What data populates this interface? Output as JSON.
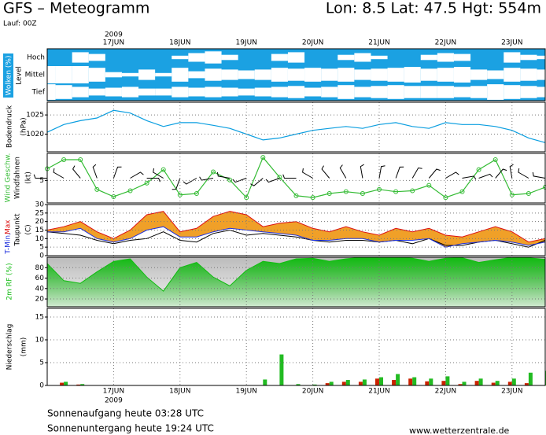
{
  "header": {
    "title": "GFS – Meteogramm",
    "location": "Lon: 8.5  Lat: 47.5  Hgt: 554m",
    "run": "Lauf: 00Z"
  },
  "footer": {
    "sunrise": "Sonnenaufgang heute 03:28 UTC",
    "sunset": "Sonnenuntergang heute 19:24 UTC",
    "source": "www.wetterzentrale.de"
  },
  "time": {
    "year": "2009",
    "x": [
      16,
      16.25,
      16.5,
      16.75,
      17,
      17.25,
      17.5,
      17.75,
      18,
      18.25,
      18.5,
      18.75,
      19,
      19.25,
      19.5,
      19.75,
      20,
      20.25,
      20.5,
      20.75,
      21,
      21.25,
      21.5,
      21.75,
      22,
      22.25,
      22.5,
      22.75,
      23,
      23.25,
      23.5
    ],
    "xlim": [
      16,
      23.5
    ],
    "xticks": [
      {
        "value": 17,
        "label": "17JUN"
      },
      {
        "value": 18,
        "label": "18JUN"
      },
      {
        "value": 19,
        "label": "19JUN"
      },
      {
        "value": 20,
        "label": "20JUN"
      },
      {
        "value": 21,
        "label": "21JUN"
      },
      {
        "value": 22,
        "label": "22JUN"
      },
      {
        "value": 23,
        "label": "23JUN"
      }
    ]
  },
  "chart_data": [
    {
      "type": "clouds",
      "ylabel": [
        "Wolken (%)",
        "Level"
      ],
      "background": "#1ba1e2",
      "grid": false,
      "series": [
        {
          "name": "Hoch",
          "color": "#ffffff",
          "values": [
            0,
            0,
            60,
            40,
            0,
            0,
            0,
            0,
            20,
            50,
            70,
            30,
            0,
            0,
            40,
            60,
            0,
            0,
            30,
            50,
            20,
            0,
            0,
            30,
            50,
            40,
            0,
            0,
            60,
            30,
            20
          ]
        },
        {
          "name": "Mittel",
          "color": "#ffffff",
          "values": [
            100,
            100,
            100,
            80,
            30,
            20,
            60,
            20,
            80,
            40,
            70,
            60,
            50,
            60,
            80,
            70,
            80,
            70,
            80,
            60,
            70,
            80,
            90,
            70,
            80,
            90,
            60,
            50,
            80,
            70,
            60
          ]
        },
        {
          "name": "Tief",
          "color": "#ffffff",
          "values": [
            90,
            80,
            60,
            40,
            50,
            60,
            40,
            40,
            60,
            50,
            60,
            50,
            40,
            50,
            60,
            70,
            50,
            60,
            80,
            60,
            70,
            80,
            70,
            70,
            70,
            60,
            70,
            90,
            80,
            70,
            60
          ]
        }
      ]
    },
    {
      "type": "line",
      "ylabel": [
        "Bodendruck",
        "(hPa)"
      ],
      "ylim": [
        1015.4,
        1028.3
      ],
      "yticks": [
        1020,
        1025
      ],
      "grid": true,
      "series": [
        {
          "color": "#0a9ee0",
          "values": [
            1020.5,
            1022.5,
            1023.5,
            1024.2,
            1026.2,
            1025.5,
            1023.5,
            1022,
            1023,
            1023,
            1022.3,
            1021.5,
            1020,
            1018.5,
            1019,
            1020,
            1021,
            1021.5,
            1022,
            1021.5,
            1022.5,
            1023,
            1022,
            1021.5,
            1023,
            1022.5,
            1022.5,
            1022,
            1021,
            1019,
            1017.8
          ]
        }
      ]
    },
    {
      "type": "wind",
      "ylabel": [
        "(kt)"
      ],
      "ylim": [
        0,
        11
      ],
      "yticks": [
        5
      ],
      "grid": true,
      "series": [
        {
          "name": "Wind Geschw.",
          "style": "line",
          "color": "#33bb33",
          "values": [
            7.6,
            9.6,
            9.6,
            3.0,
            1.4,
            2.7,
            4.4,
            7.4,
            1.8,
            2.1,
            6.9,
            5.1,
            1.2,
            10.1,
            5.7,
            1.6,
            1.2,
            2.1,
            2.5,
            2.1,
            3.0,
            2.5,
            2.7,
            3.9,
            1.2,
            2.5,
            7.4,
            9.6,
            1.8,
            2.1,
            3.5
          ]
        },
        {
          "name": "Windfahnen",
          "style": "barb",
          "color": "#000000",
          "values": [
            270,
            300,
            320,
            340,
            20,
            60,
            90,
            300,
            200,
            240,
            260,
            280,
            250,
            230,
            250,
            270,
            300,
            320,
            330,
            350,
            10,
            20,
            30,
            40,
            60,
            80,
            70,
            40,
            350,
            300,
            280
          ]
        }
      ]
    },
    {
      "type": "range",
      "ylabel": [
        "(C)"
      ],
      "ylim": [
        0,
        30
      ],
      "yticks": [
        0,
        5,
        10,
        15,
        20,
        25,
        30
      ],
      "grid": true,
      "fill": "#f0a028",
      "series": [
        {
          "name": "T-Min,",
          "color": "#2233dd",
          "values": [
            14,
            14,
            16,
            10,
            8,
            10,
            15,
            17,
            11,
            11,
            14,
            16,
            15,
            14,
            13,
            12,
            9,
            9,
            10,
            10,
            8,
            9,
            9,
            10,
            5,
            7,
            8,
            9,
            8,
            6,
            8
          ]
        },
        {
          "name": "Max",
          "color": "#dd1111",
          "values": [
            15,
            17,
            20,
            14,
            10,
            15,
            24,
            26,
            14,
            16,
            23,
            26,
            24,
            17,
            19,
            20,
            16,
            14,
            17,
            14,
            12,
            16,
            14,
            16,
            12,
            11,
            14,
            17,
            14,
            8,
            10
          ]
        },
        {
          "name": "Taupunkt",
          "color": "#000000",
          "values": [
            14,
            13,
            12,
            9,
            7,
            9,
            10,
            14,
            9,
            8,
            13,
            15,
            12,
            13,
            12,
            11,
            9,
            8,
            9,
            9,
            8,
            9,
            7,
            10,
            6,
            6,
            8,
            9,
            7,
            5,
            9
          ]
        }
      ]
    },
    {
      "type": "area",
      "ylim": [
        5,
        100
      ],
      "yticks": [
        20,
        40,
        60,
        80
      ],
      "grid": true,
      "series": [
        {
          "name": "2m RF (%)",
          "color": "#11bb11",
          "values": [
            88,
            55,
            50,
            72,
            92,
            97,
            62,
            35,
            80,
            90,
            62,
            45,
            75,
            92,
            88,
            97,
            98,
            92,
            97,
            100,
            100,
            100,
            98,
            92,
            98,
            99,
            90,
            95,
            100,
            99,
            96
          ]
        }
      ]
    },
    {
      "type": "bar",
      "ylabel": [
        "Niederschlag",
        "(mm)"
      ],
      "ylim": [
        0,
        16.9
      ],
      "yticks": [
        0,
        5,
        10,
        15
      ],
      "grid": true,
      "series": [
        {
          "color": "#cc2200",
          "values": [
            0,
            0.6,
            0.2,
            0,
            0,
            0,
            0,
            0,
            0,
            0,
            0,
            0,
            0,
            0,
            0,
            0,
            0,
            0.5,
            0.8,
            0.8,
            1.5,
            1.2,
            1.5,
            0.9,
            1.0,
            0.3,
            1.0,
            0.6,
            0.8,
            0.5,
            0
          ]
        },
        {
          "color": "#22bb22",
          "values": [
            0,
            0.8,
            0.3,
            0,
            0,
            0,
            0,
            0,
            0,
            0,
            0,
            0,
            0,
            1.3,
            6.8,
            0.3,
            0.2,
            0.8,
            1.2,
            1.3,
            1.8,
            2.5,
            1.8,
            1.5,
            2.0,
            0.8,
            1.5,
            1.0,
            1.5,
            2.8,
            3.2
          ]
        }
      ]
    }
  ]
}
